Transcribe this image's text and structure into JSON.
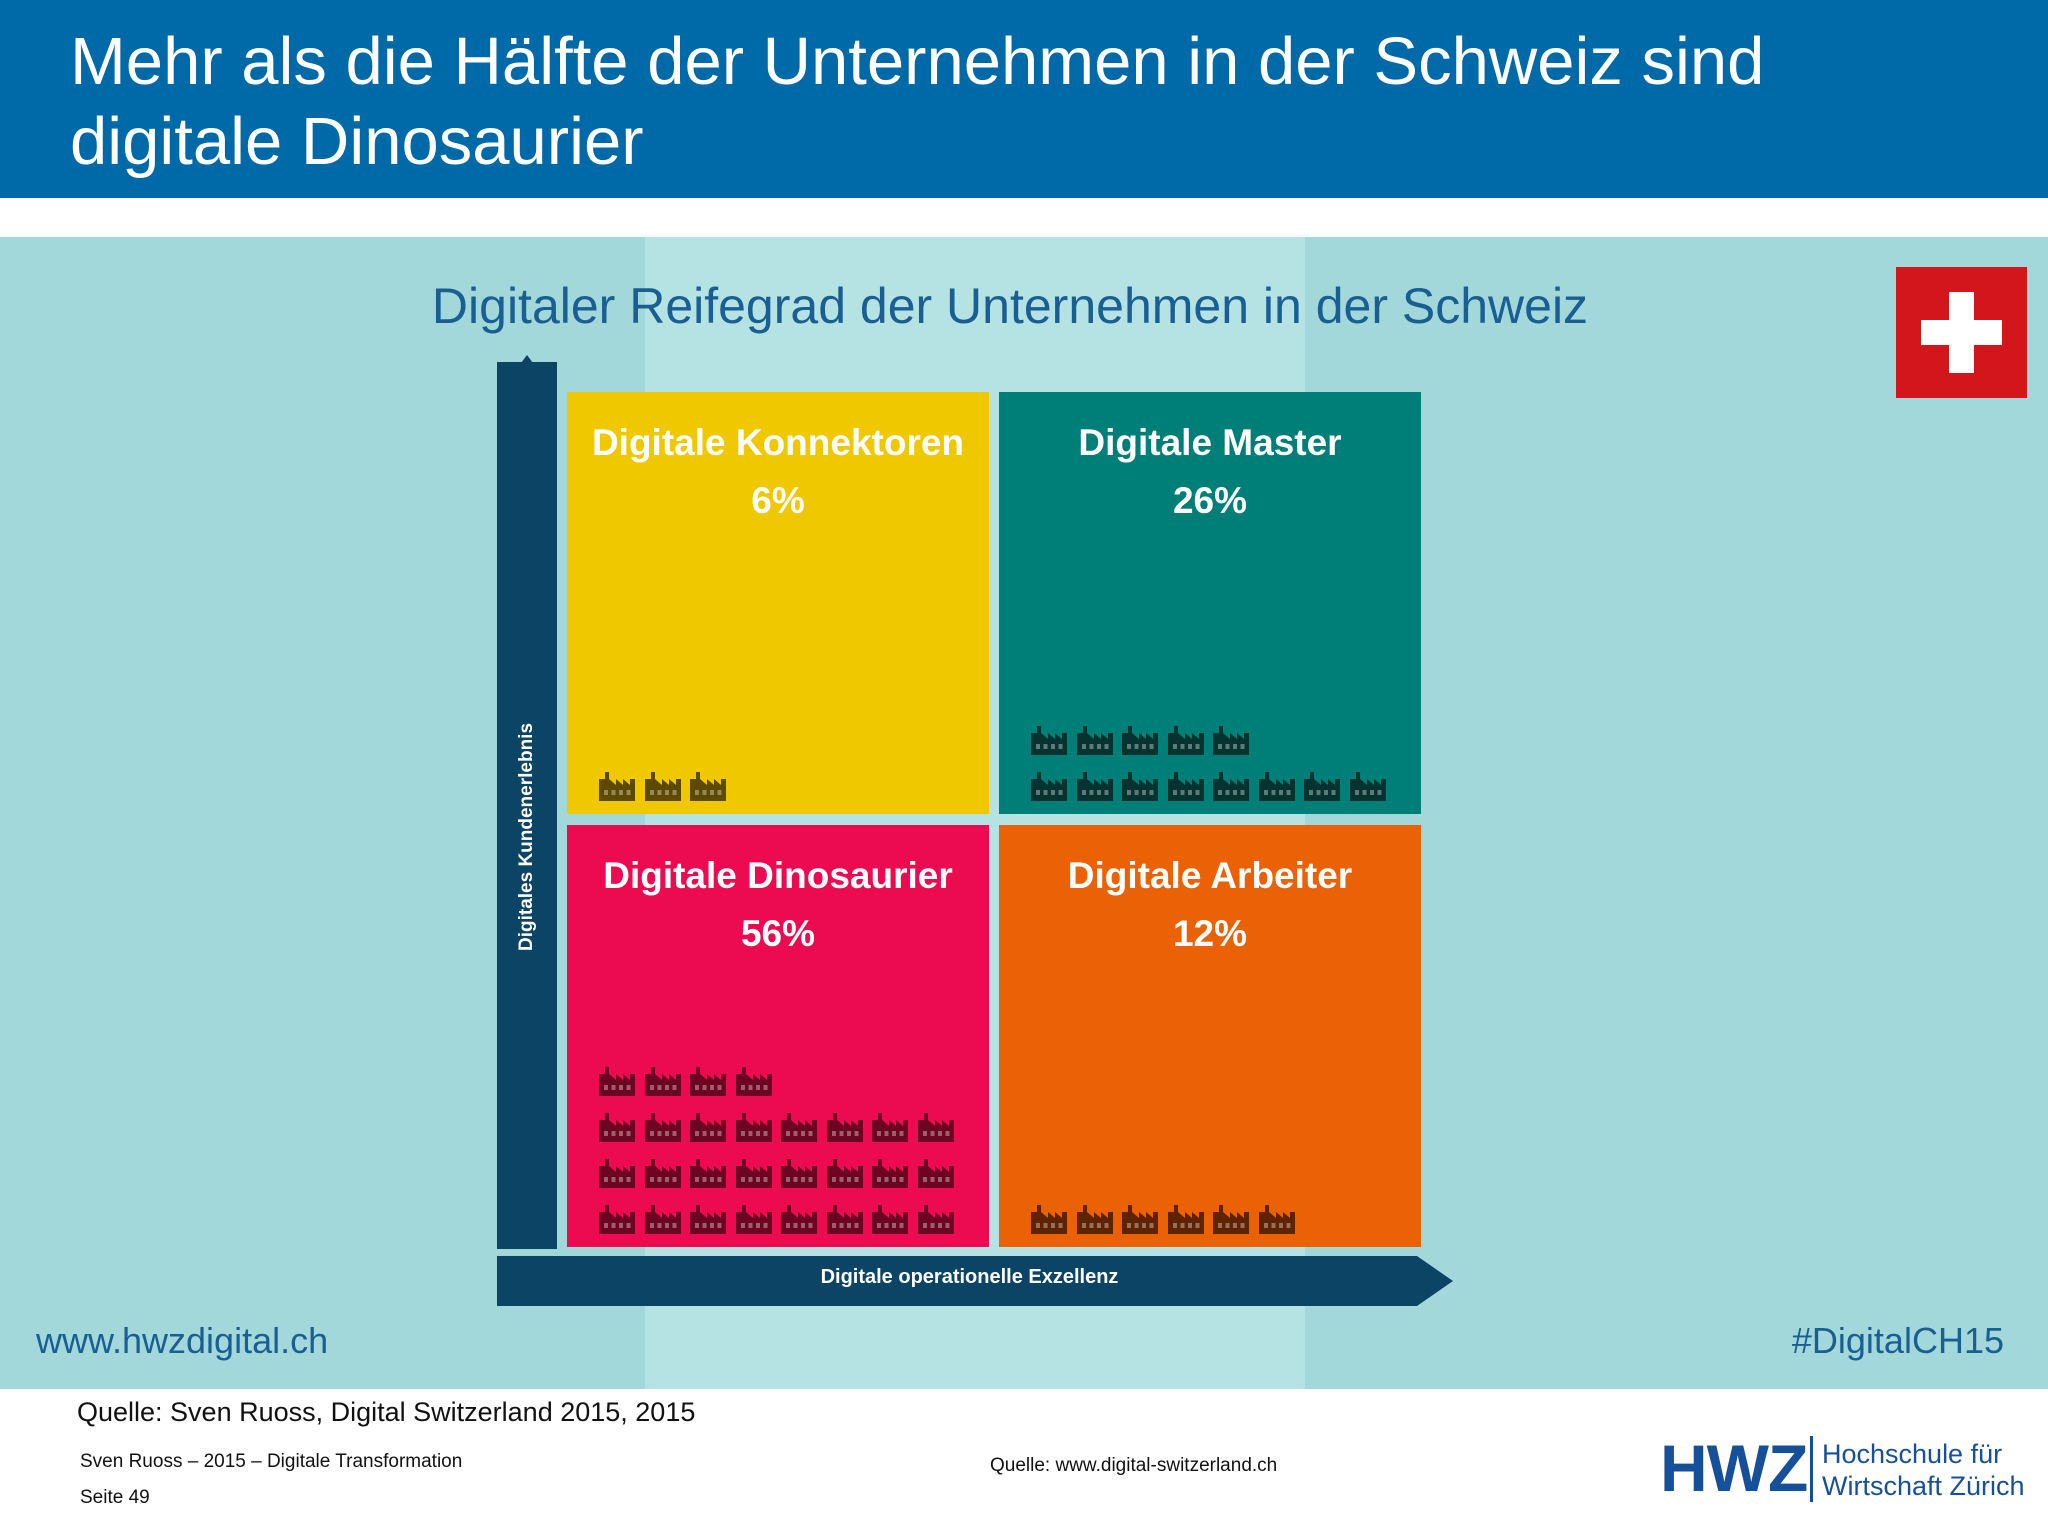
{
  "slide": {
    "title": "Mehr als die Hälfte der Unternehmen in der Schweiz sind digitale Dinosaurier"
  },
  "infographic": {
    "title": "Digitaler Reifegrad der Unternehmen in der Schweiz",
    "y_axis_label": "Digitales Kundenerlebnis",
    "x_axis_label": "Digitale operationelle Exzellenz",
    "website": "www.hwzdigital.ch",
    "hashtag": "#DigitalCH15",
    "flag": "swiss-flag",
    "icon": "factory-icon"
  },
  "chart_data": {
    "type": "table",
    "title": "Digitaler Reifegrad der Unternehmen in der Schweiz",
    "xlabel": "Digitale operationelle Exzellenz",
    "ylabel": "Digitales Kundenerlebnis",
    "quadrants": [
      {
        "name": "Digitale Konnektoren",
        "label": "6%",
        "value": 6,
        "position": "top-left",
        "color": "#f0c800",
        "icon_color": "#5c4a00",
        "icon_count": 3
      },
      {
        "name": "Digitale Master",
        "label": "26%",
        "value": 26,
        "position": "top-right",
        "color": "#007f78",
        "icon_color": "#06332f",
        "icon_count": 13
      },
      {
        "name": "Digitale Dinosaurier",
        "label": "56%",
        "value": 56,
        "position": "bottom-left",
        "color": "#ec0a50",
        "icon_color": "#6b0522",
        "icon_count": 28
      },
      {
        "name": "Digitale Arbeiter",
        "label": "12%",
        "value": 12,
        "position": "bottom-right",
        "color": "#ea6106",
        "icon_color": "#5e2302",
        "icon_count": 6
      }
    ]
  },
  "footer": {
    "source": "Quelle: Sven Ruoss, Digital Switzerland 2015, 2015",
    "author": "Sven Ruoss – 2015 – Digitale Transformation",
    "page": "Seite 49",
    "source_url": "Quelle: www.digital-switzerland.ch",
    "logo_letters": "HWZ",
    "logo_line1": "Hochschule für",
    "logo_line2": "Wirtschaft Zürich"
  }
}
